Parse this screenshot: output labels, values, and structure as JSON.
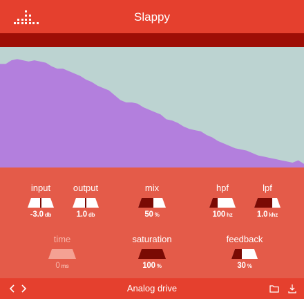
{
  "app": {
    "title": "Slappy",
    "menu_icon": "dot-grid-logo-icon"
  },
  "colors": {
    "header": "#e5402e",
    "accent_dark": "#9e0e06",
    "panel": "#e45b49",
    "spectrum_fill": "#b37fdd",
    "spectrum_bg": "#bcd3d1"
  },
  "spectrum": {
    "points": [
      0.86,
      0.86,
      0.89,
      0.9,
      0.89,
      0.88,
      0.89,
      0.88,
      0.87,
      0.84,
      0.82,
      0.82,
      0.8,
      0.78,
      0.76,
      0.73,
      0.71,
      0.68,
      0.66,
      0.64,
      0.6,
      0.56,
      0.54,
      0.54,
      0.53,
      0.5,
      0.48,
      0.46,
      0.44,
      0.4,
      0.39,
      0.37,
      0.34,
      0.32,
      0.31,
      0.3,
      0.27,
      0.25,
      0.22,
      0.2,
      0.18,
      0.16,
      0.15,
      0.14,
      0.12,
      0.1,
      0.09,
      0.08,
      0.07,
      0.06,
      0.05,
      0.04,
      0.06,
      0.03
    ]
  },
  "params": {
    "input": {
      "label": "input",
      "value": "-3.0",
      "unit": "db",
      "level": 0.45
    },
    "output": {
      "label": "output",
      "value": "1.0",
      "unit": "db",
      "level": 0.5
    },
    "mix": {
      "label": "mix",
      "value": "50",
      "unit": "%",
      "level": 0.5
    },
    "hpf": {
      "label": "hpf",
      "value": "100",
      "unit": "hz",
      "level": 0.25
    },
    "lpf": {
      "label": "lpf",
      "value": "1.0",
      "unit": "khz",
      "level": 0.25
    },
    "time": {
      "label": "time",
      "value": "0",
      "unit": "ms",
      "level": 0.0
    },
    "saturation": {
      "label": "saturation",
      "value": "100",
      "unit": "%",
      "level": 1.0
    },
    "feedback": {
      "label": "feedback",
      "value": "30",
      "unit": "%",
      "level": 0.3
    }
  },
  "footer": {
    "preset_name": "Analog drive",
    "prev_icon": "chevron-left-icon",
    "next_icon": "chevron-right-icon",
    "folder_icon": "folder-icon",
    "download_icon": "download-icon"
  }
}
